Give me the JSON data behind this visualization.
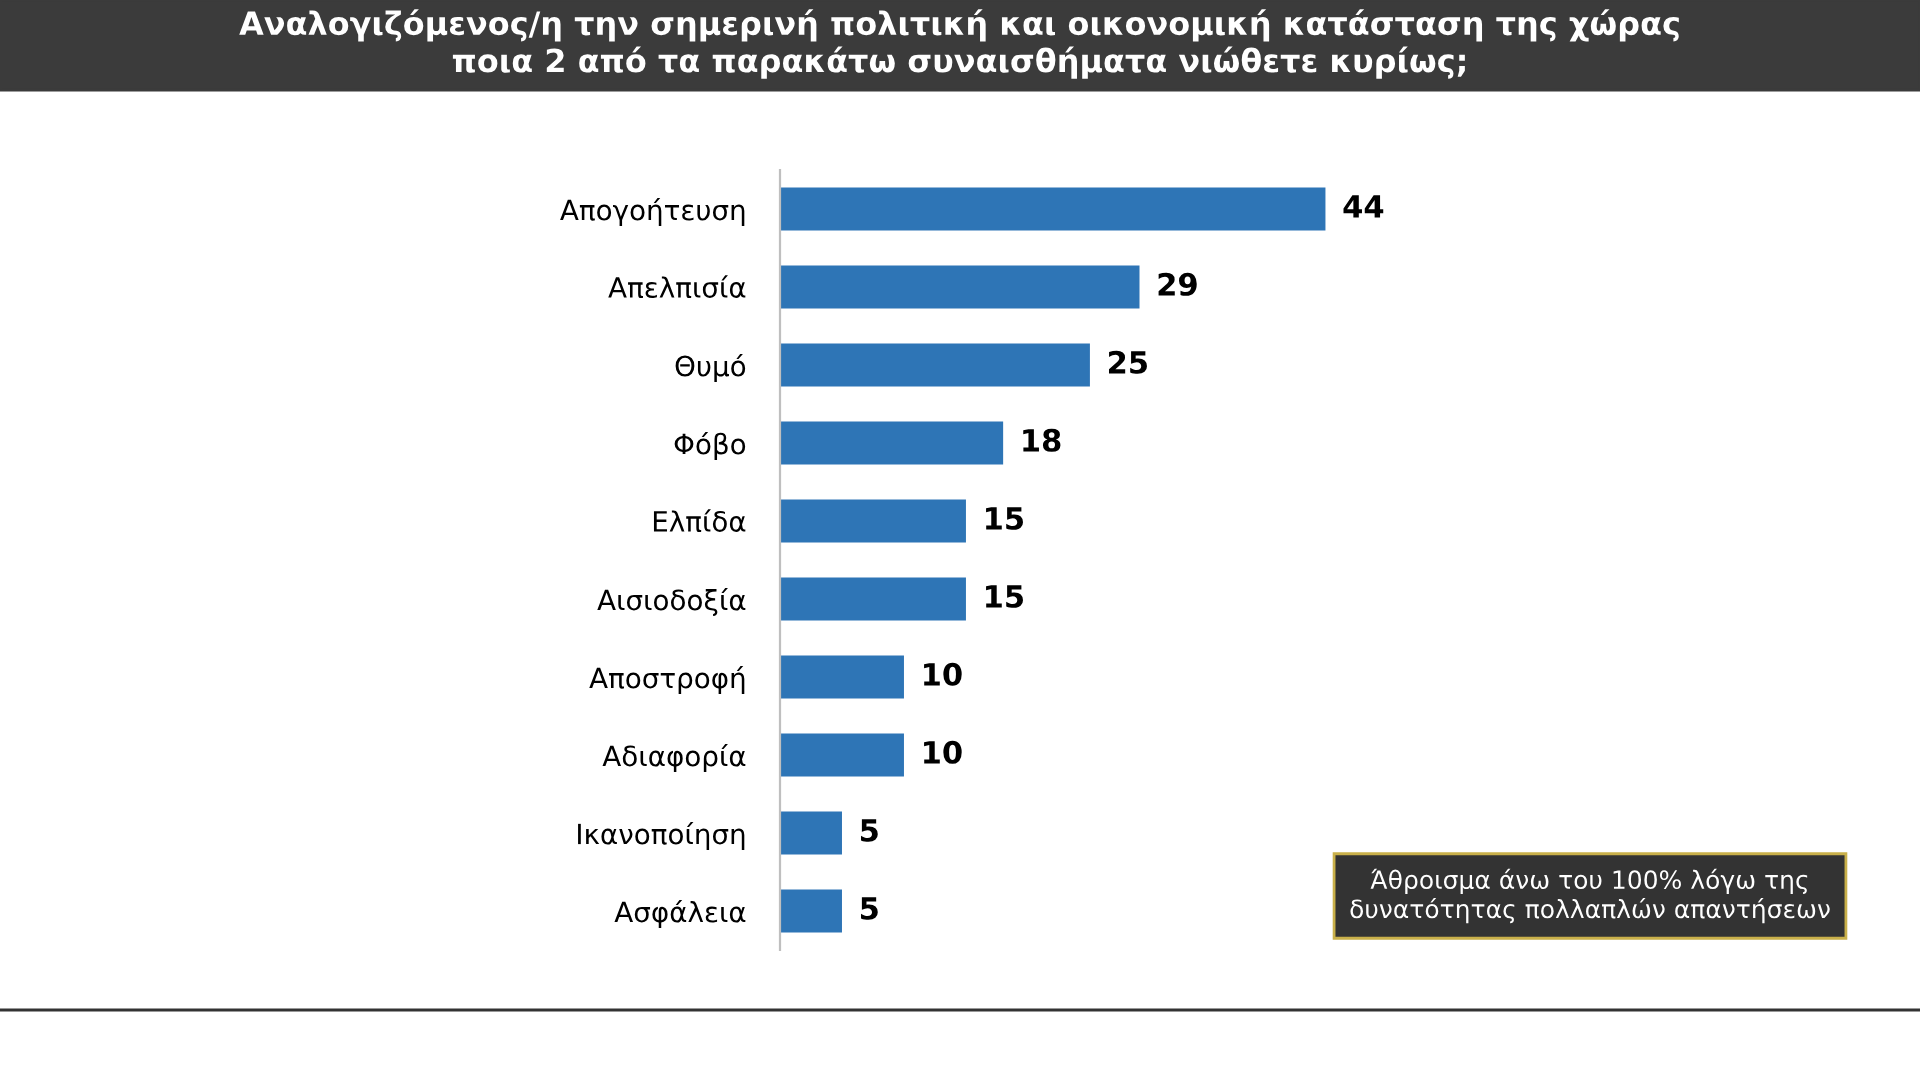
{
  "chart_data": {
    "type": "bar",
    "orientation": "horizontal",
    "title": "Αναλογιζόμενος/η την σημερινή πολιτική και οικονομική κατάσταση της χώρας\nποια 2 από τα παρακάτω συναισθήματα νιώθετε κυρίως;",
    "categories": [
      "Απογοήτευση",
      "Απελπισία",
      "Θυμό",
      "Φόβο",
      "Ελπίδα",
      "Αισιοδοξία",
      "Αποστροφή",
      "Αδιαφορία",
      "Ικανοποίηση",
      "Ασφάλεια"
    ],
    "values": [
      44,
      29,
      25,
      18,
      15,
      15,
      10,
      10,
      5,
      5
    ],
    "color": "#2e75b6",
    "data_labels": true,
    "grid": false,
    "annotations": [
      "Άθροισμα άνω του 100% λόγω της\nδυνατότητας πολλαπλών απαντήσεων"
    ]
  }
}
